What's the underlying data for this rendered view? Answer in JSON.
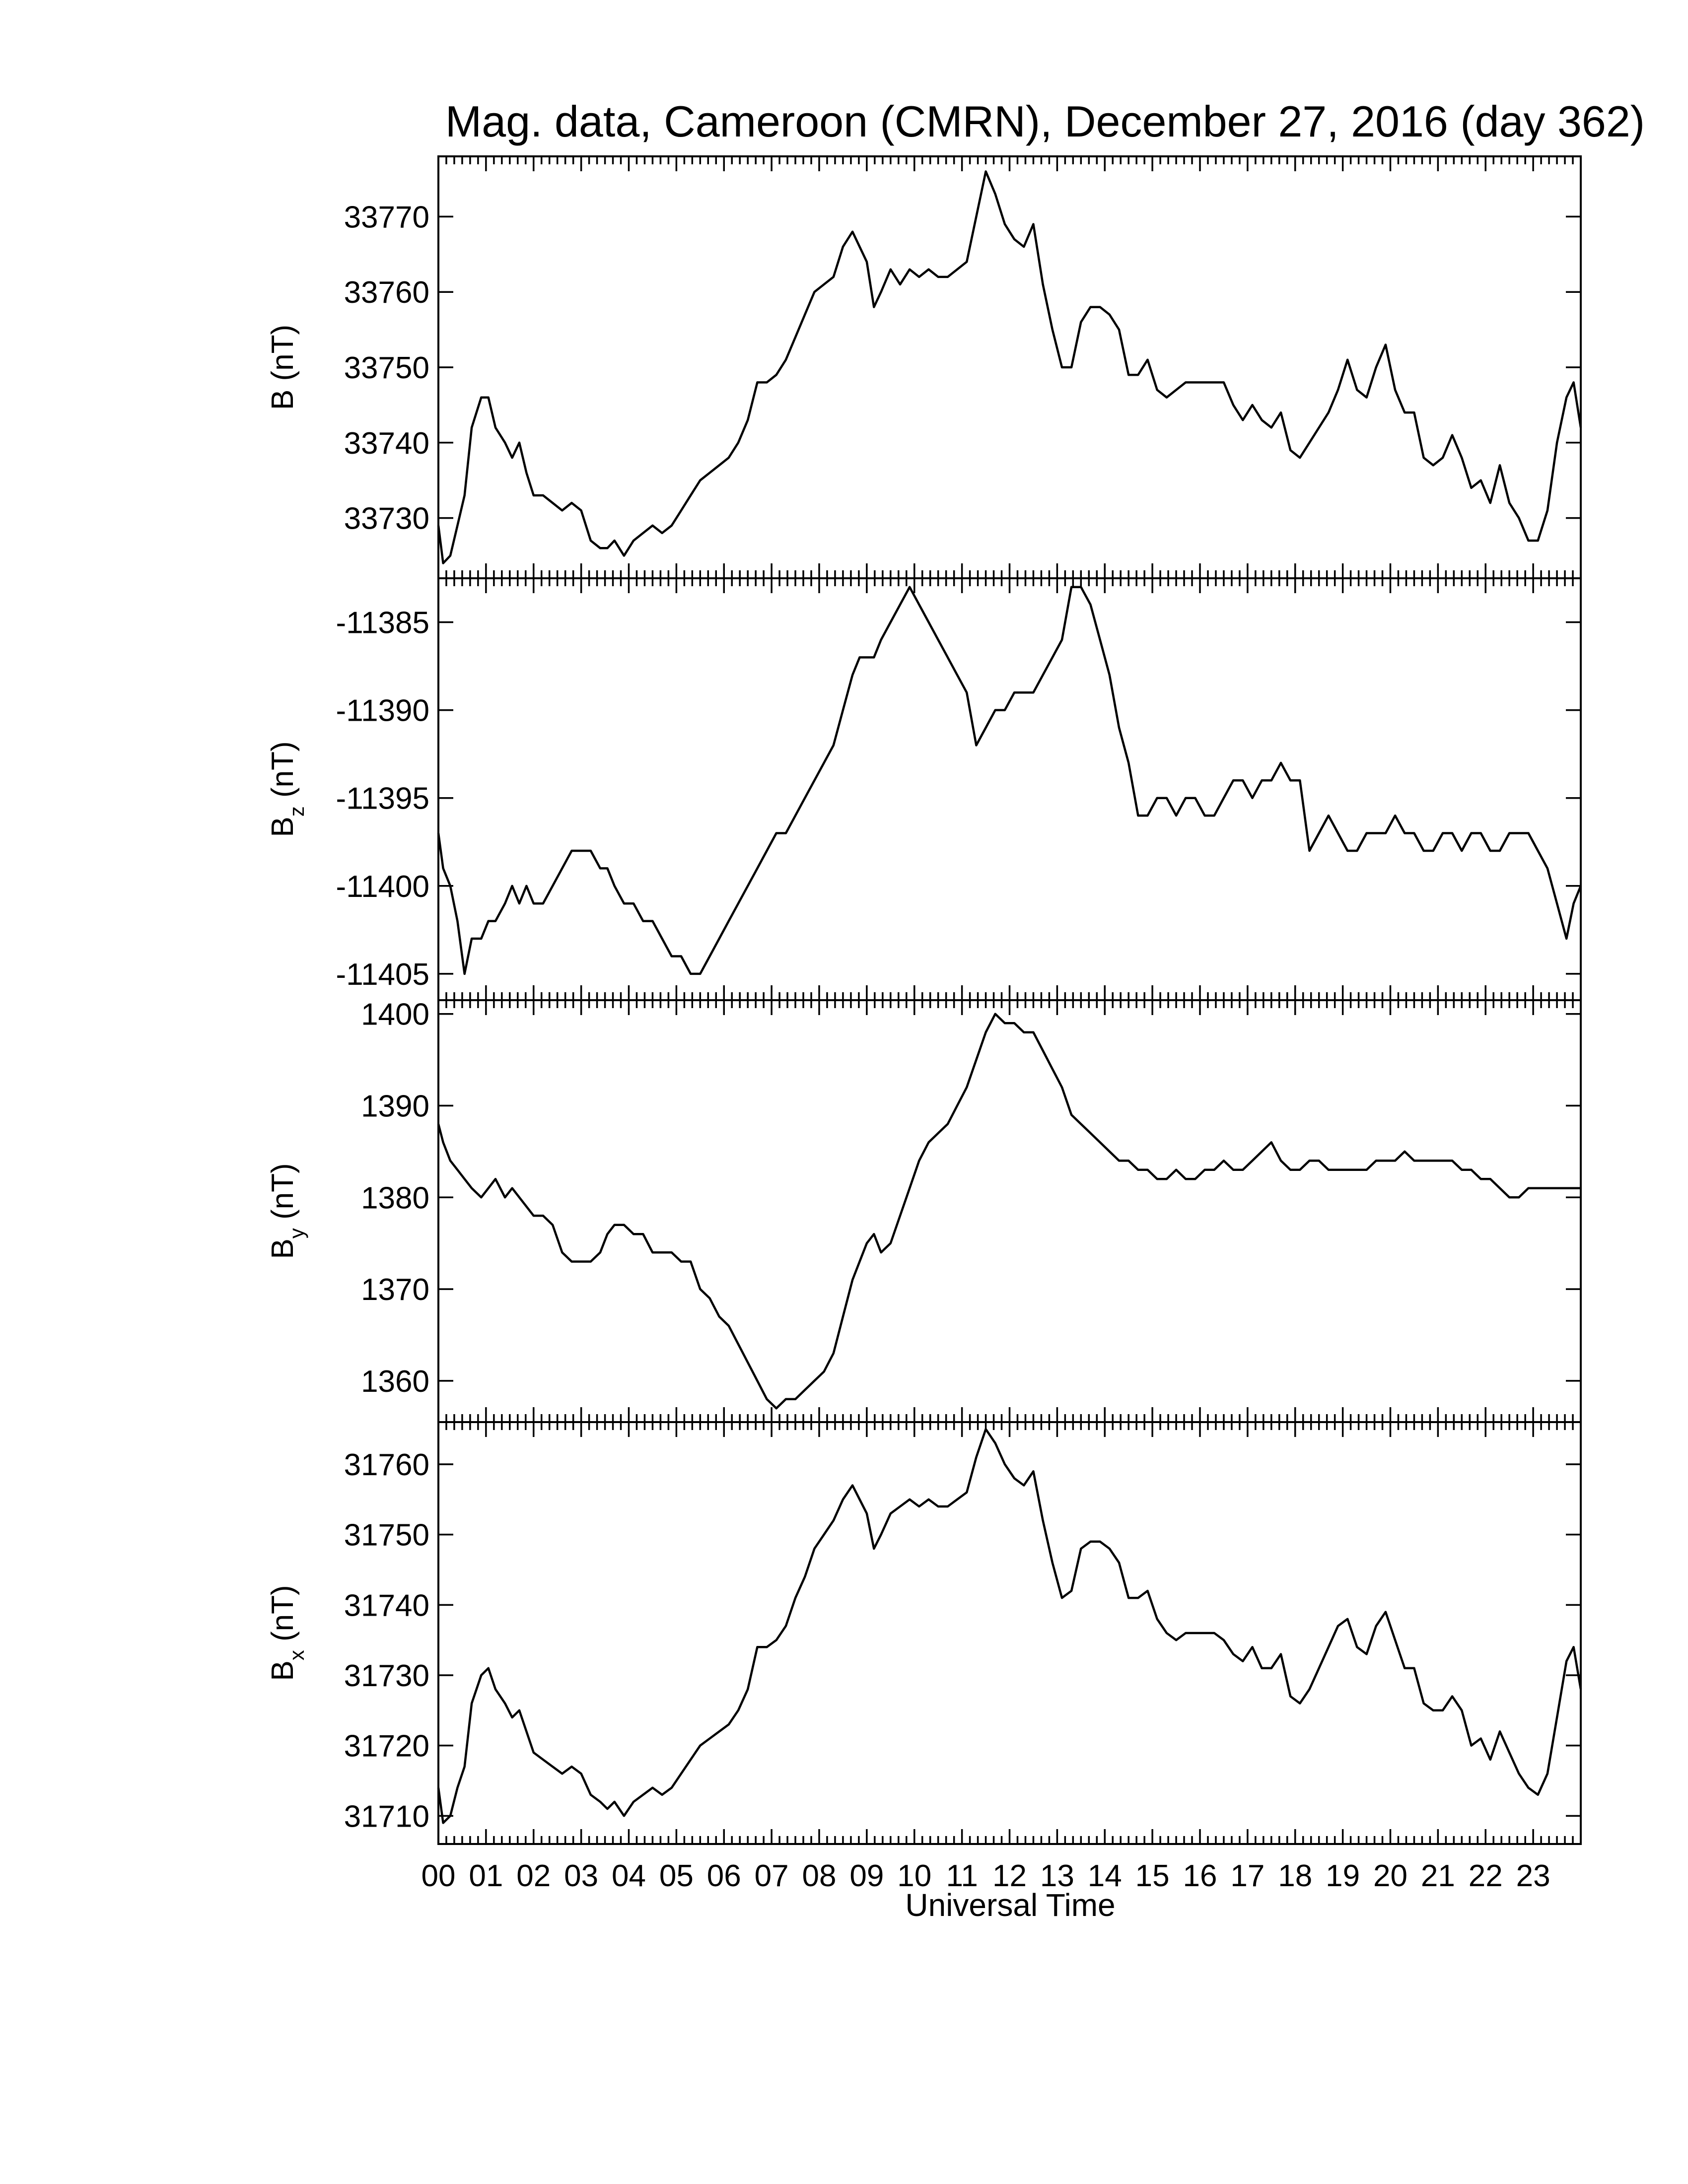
{
  "chart_data": {
    "type": "line",
    "title": "Mag. data, Cameroon (CMRN), December 27, 2016 (day 362)",
    "xlabel": "Universal Time",
    "x_ticks": [
      "00",
      "01",
      "02",
      "03",
      "04",
      "05",
      "06",
      "07",
      "08",
      "09",
      "10",
      "11",
      "12",
      "13",
      "14",
      "15",
      "16",
      "17",
      "18",
      "19",
      "20",
      "21",
      "22",
      "23"
    ],
    "xlim": [
      0,
      24
    ],
    "x": [
      0.0,
      0.1,
      0.25,
      0.4,
      0.55,
      0.7,
      0.9,
      1.05,
      1.2,
      1.4,
      1.55,
      1.7,
      1.85,
      2.0,
      2.2,
      2.4,
      2.6,
      2.8,
      3.0,
      3.2,
      3.4,
      3.55,
      3.7,
      3.9,
      4.1,
      4.3,
      4.5,
      4.7,
      4.9,
      5.1,
      5.3,
      5.5,
      5.7,
      5.9,
      6.1,
      6.3,
      6.5,
      6.7,
      6.9,
      7.1,
      7.3,
      7.5,
      7.7,
      7.9,
      8.1,
      8.3,
      8.5,
      8.7,
      8.85,
      9.0,
      9.15,
      9.3,
      9.5,
      9.7,
      9.9,
      10.1,
      10.3,
      10.5,
      10.7,
      10.9,
      11.1,
      11.3,
      11.5,
      11.7,
      11.9,
      12.1,
      12.3,
      12.5,
      12.7,
      12.9,
      13.1,
      13.3,
      13.5,
      13.7,
      13.9,
      14.1,
      14.3,
      14.5,
      14.7,
      14.9,
      15.1,
      15.3,
      15.5,
      15.7,
      15.9,
      16.1,
      16.3,
      16.5,
      16.7,
      16.9,
      17.1,
      17.3,
      17.5,
      17.7,
      17.9,
      18.1,
      18.3,
      18.5,
      18.7,
      18.9,
      19.1,
      19.3,
      19.5,
      19.7,
      19.9,
      20.1,
      20.3,
      20.5,
      20.7,
      20.9,
      21.1,
      21.3,
      21.5,
      21.7,
      21.9,
      22.1,
      22.3,
      22.5,
      22.7,
      22.9,
      23.1,
      23.3,
      23.5,
      23.7,
      23.85,
      24.0
    ],
    "panels": [
      {
        "name": "B",
        "ylabel": "B (nT)",
        "ylabel_sub": "",
        "ylim": [
          33722,
          33778
        ],
        "yticks": [
          33730,
          33740,
          33750,
          33760,
          33770
        ],
        "values": [
          33729,
          33724,
          33725,
          33729,
          33733,
          33742,
          33746,
          33746,
          33742,
          33740,
          33738,
          33740,
          33736,
          33733,
          33733,
          33732,
          33731,
          33732,
          33731,
          33727,
          33726,
          33726,
          33727,
          33725,
          33727,
          33728,
          33729,
          33728,
          33729,
          33731,
          33733,
          33735,
          33736,
          33737,
          33738,
          33740,
          33743,
          33748,
          33748,
          33749,
          33751,
          33754,
          33757,
          33760,
          33761,
          33762,
          33766,
          33768,
          33766,
          33764,
          33758,
          33760,
          33763,
          33761,
          33763,
          33762,
          33763,
          33762,
          33762,
          33763,
          33764,
          33770,
          33776,
          33773,
          33769,
          33767,
          33766,
          33769,
          33761,
          33755,
          33750,
          33750,
          33756,
          33758,
          33758,
          33757,
          33755,
          33749,
          33749,
          33751,
          33747,
          33746,
          33747,
          33748,
          33748,
          33748,
          33748,
          33748,
          33745,
          33743,
          33745,
          33743,
          33742,
          33744,
          33739,
          33738,
          33740,
          33742,
          33744,
          33747,
          33751,
          33747,
          33746,
          33750,
          33753,
          33747,
          33744,
          33744,
          33738,
          33737,
          33738,
          33741,
          33738,
          33734,
          33735,
          33732,
          33737,
          33732,
          33730,
          33727,
          33727,
          33731,
          33740,
          33746,
          33748,
          33742
        ]
      },
      {
        "name": "Bz",
        "ylabel": "B",
        "ylabel_sub": "z",
        "ylabel_unit": "(nT)",
        "ylim": [
          -11406.5,
          -11382.5
        ],
        "yticks": [
          -11385,
          -11390,
          -11395,
          -11400,
          -11405
        ],
        "values": [
          -11397,
          -11399,
          -11400,
          -11402,
          -11405,
          -11403,
          -11403,
          -11402,
          -11402,
          -11401,
          -11400,
          -11401,
          -11400,
          -11401,
          -11401,
          -11400,
          -11399,
          -11398,
          -11398,
          -11398,
          -11399,
          -11399,
          -11400,
          -11401,
          -11401,
          -11402,
          -11402,
          -11403,
          -11404,
          -11404,
          -11405,
          -11405,
          -11404,
          -11403,
          -11402,
          -11401,
          -11400,
          -11399,
          -11398,
          -11397,
          -11397,
          -11396,
          -11395,
          -11394,
          -11393,
          -11392,
          -11390,
          -11388,
          -11387,
          -11387,
          -11387,
          -11386,
          -11385,
          -11384,
          -11383,
          -11384,
          -11385,
          -11386,
          -11387,
          -11388,
          -11389,
          -11392,
          -11391,
          -11390,
          -11390,
          -11389,
          -11389,
          -11389,
          -11388,
          -11387,
          -11386,
          -11383,
          -11383,
          -11384,
          -11386,
          -11388,
          -11391,
          -11393,
          -11396,
          -11396,
          -11395,
          -11395,
          -11396,
          -11395,
          -11395,
          -11396,
          -11396,
          -11395,
          -11394,
          -11394,
          -11395,
          -11394,
          -11394,
          -11393,
          -11394,
          -11394,
          -11398,
          -11397,
          -11396,
          -11397,
          -11398,
          -11398,
          -11397,
          -11397,
          -11397,
          -11396,
          -11397,
          -11397,
          -11398,
          -11398,
          -11397,
          -11397,
          -11398,
          -11397,
          -11397,
          -11398,
          -11398,
          -11397,
          -11397,
          -11397,
          -11398,
          -11399,
          -11401,
          -11403,
          -11401,
          -11400
        ]
      },
      {
        "name": "By",
        "ylabel": "B",
        "ylabel_sub": "y",
        "ylabel_unit": "(nT)",
        "ylim": [
          1355.5,
          1401.5
        ],
        "yticks": [
          1360,
          1370,
          1380,
          1390,
          1400
        ],
        "values": [
          1388,
          1386,
          1384,
          1383,
          1382,
          1381,
          1380,
          1381,
          1382,
          1380,
          1381,
          1380,
          1379,
          1378,
          1378,
          1377,
          1374,
          1373,
          1373,
          1373,
          1374,
          1376,
          1377,
          1377,
          1376,
          1376,
          1374,
          1374,
          1374,
          1373,
          1373,
          1370,
          1369,
          1367,
          1366,
          1364,
          1362,
          1360,
          1358,
          1357,
          1358,
          1358,
          1359,
          1360,
          1361,
          1363,
          1367,
          1371,
          1373,
          1375,
          1376,
          1374,
          1375,
          1378,
          1381,
          1384,
          1386,
          1387,
          1388,
          1390,
          1392,
          1395,
          1398,
          1400,
          1399,
          1399,
          1398,
          1398,
          1396,
          1394,
          1392,
          1389,
          1388,
          1387,
          1386,
          1385,
          1384,
          1384,
          1383,
          1383,
          1382,
          1382,
          1383,
          1382,
          1382,
          1383,
          1383,
          1384,
          1383,
          1383,
          1384,
          1385,
          1386,
          1384,
          1383,
          1383,
          1384,
          1384,
          1383,
          1383,
          1383,
          1383,
          1383,
          1384,
          1384,
          1384,
          1385,
          1384,
          1384,
          1384,
          1384,
          1384,
          1383,
          1383,
          1382,
          1382,
          1381,
          1380,
          1380,
          1381,
          1381,
          1381,
          1381,
          1381,
          1381,
          1381
        ]
      },
      {
        "name": "Bx",
        "ylabel": "B",
        "ylabel_sub": "x",
        "ylabel_unit": "(nT)",
        "ylim": [
          31706,
          31766
        ],
        "yticks": [
          31710,
          31720,
          31730,
          31740,
          31750,
          31760
        ],
        "values": [
          31714,
          31709,
          31710,
          31714,
          31717,
          31726,
          31730,
          31731,
          31728,
          31726,
          31724,
          31725,
          31722,
          31719,
          31718,
          31717,
          31716,
          31717,
          31716,
          31713,
          31712,
          31711,
          31712,
          31710,
          31712,
          31713,
          31714,
          31713,
          31714,
          31716,
          31718,
          31720,
          31721,
          31722,
          31723,
          31725,
          31728,
          31734,
          31734,
          31735,
          31737,
          31741,
          31744,
          31748,
          31750,
          31752,
          31755,
          31757,
          31755,
          31753,
          31748,
          31750,
          31753,
          31754,
          31755,
          31754,
          31755,
          31754,
          31754,
          31755,
          31756,
          31761,
          31765,
          31763,
          31760,
          31758,
          31757,
          31759,
          31752,
          31746,
          31741,
          31742,
          31748,
          31749,
          31749,
          31748,
          31746,
          31741,
          31741,
          31742,
          31738,
          31736,
          31735,
          31736,
          31736,
          31736,
          31736,
          31735,
          31733,
          31732,
          31734,
          31731,
          31731,
          31733,
          31727,
          31726,
          31728,
          31731,
          31734,
          31737,
          31738,
          31734,
          31733,
          31737,
          31739,
          31735,
          31731,
          31731,
          31726,
          31725,
          31725,
          31727,
          31725,
          31720,
          31721,
          31718,
          31722,
          31719,
          31716,
          31714,
          31713,
          31716,
          31724,
          31732,
          31734,
          31728
        ]
      }
    ],
    "grid": false,
    "legend": "none"
  }
}
